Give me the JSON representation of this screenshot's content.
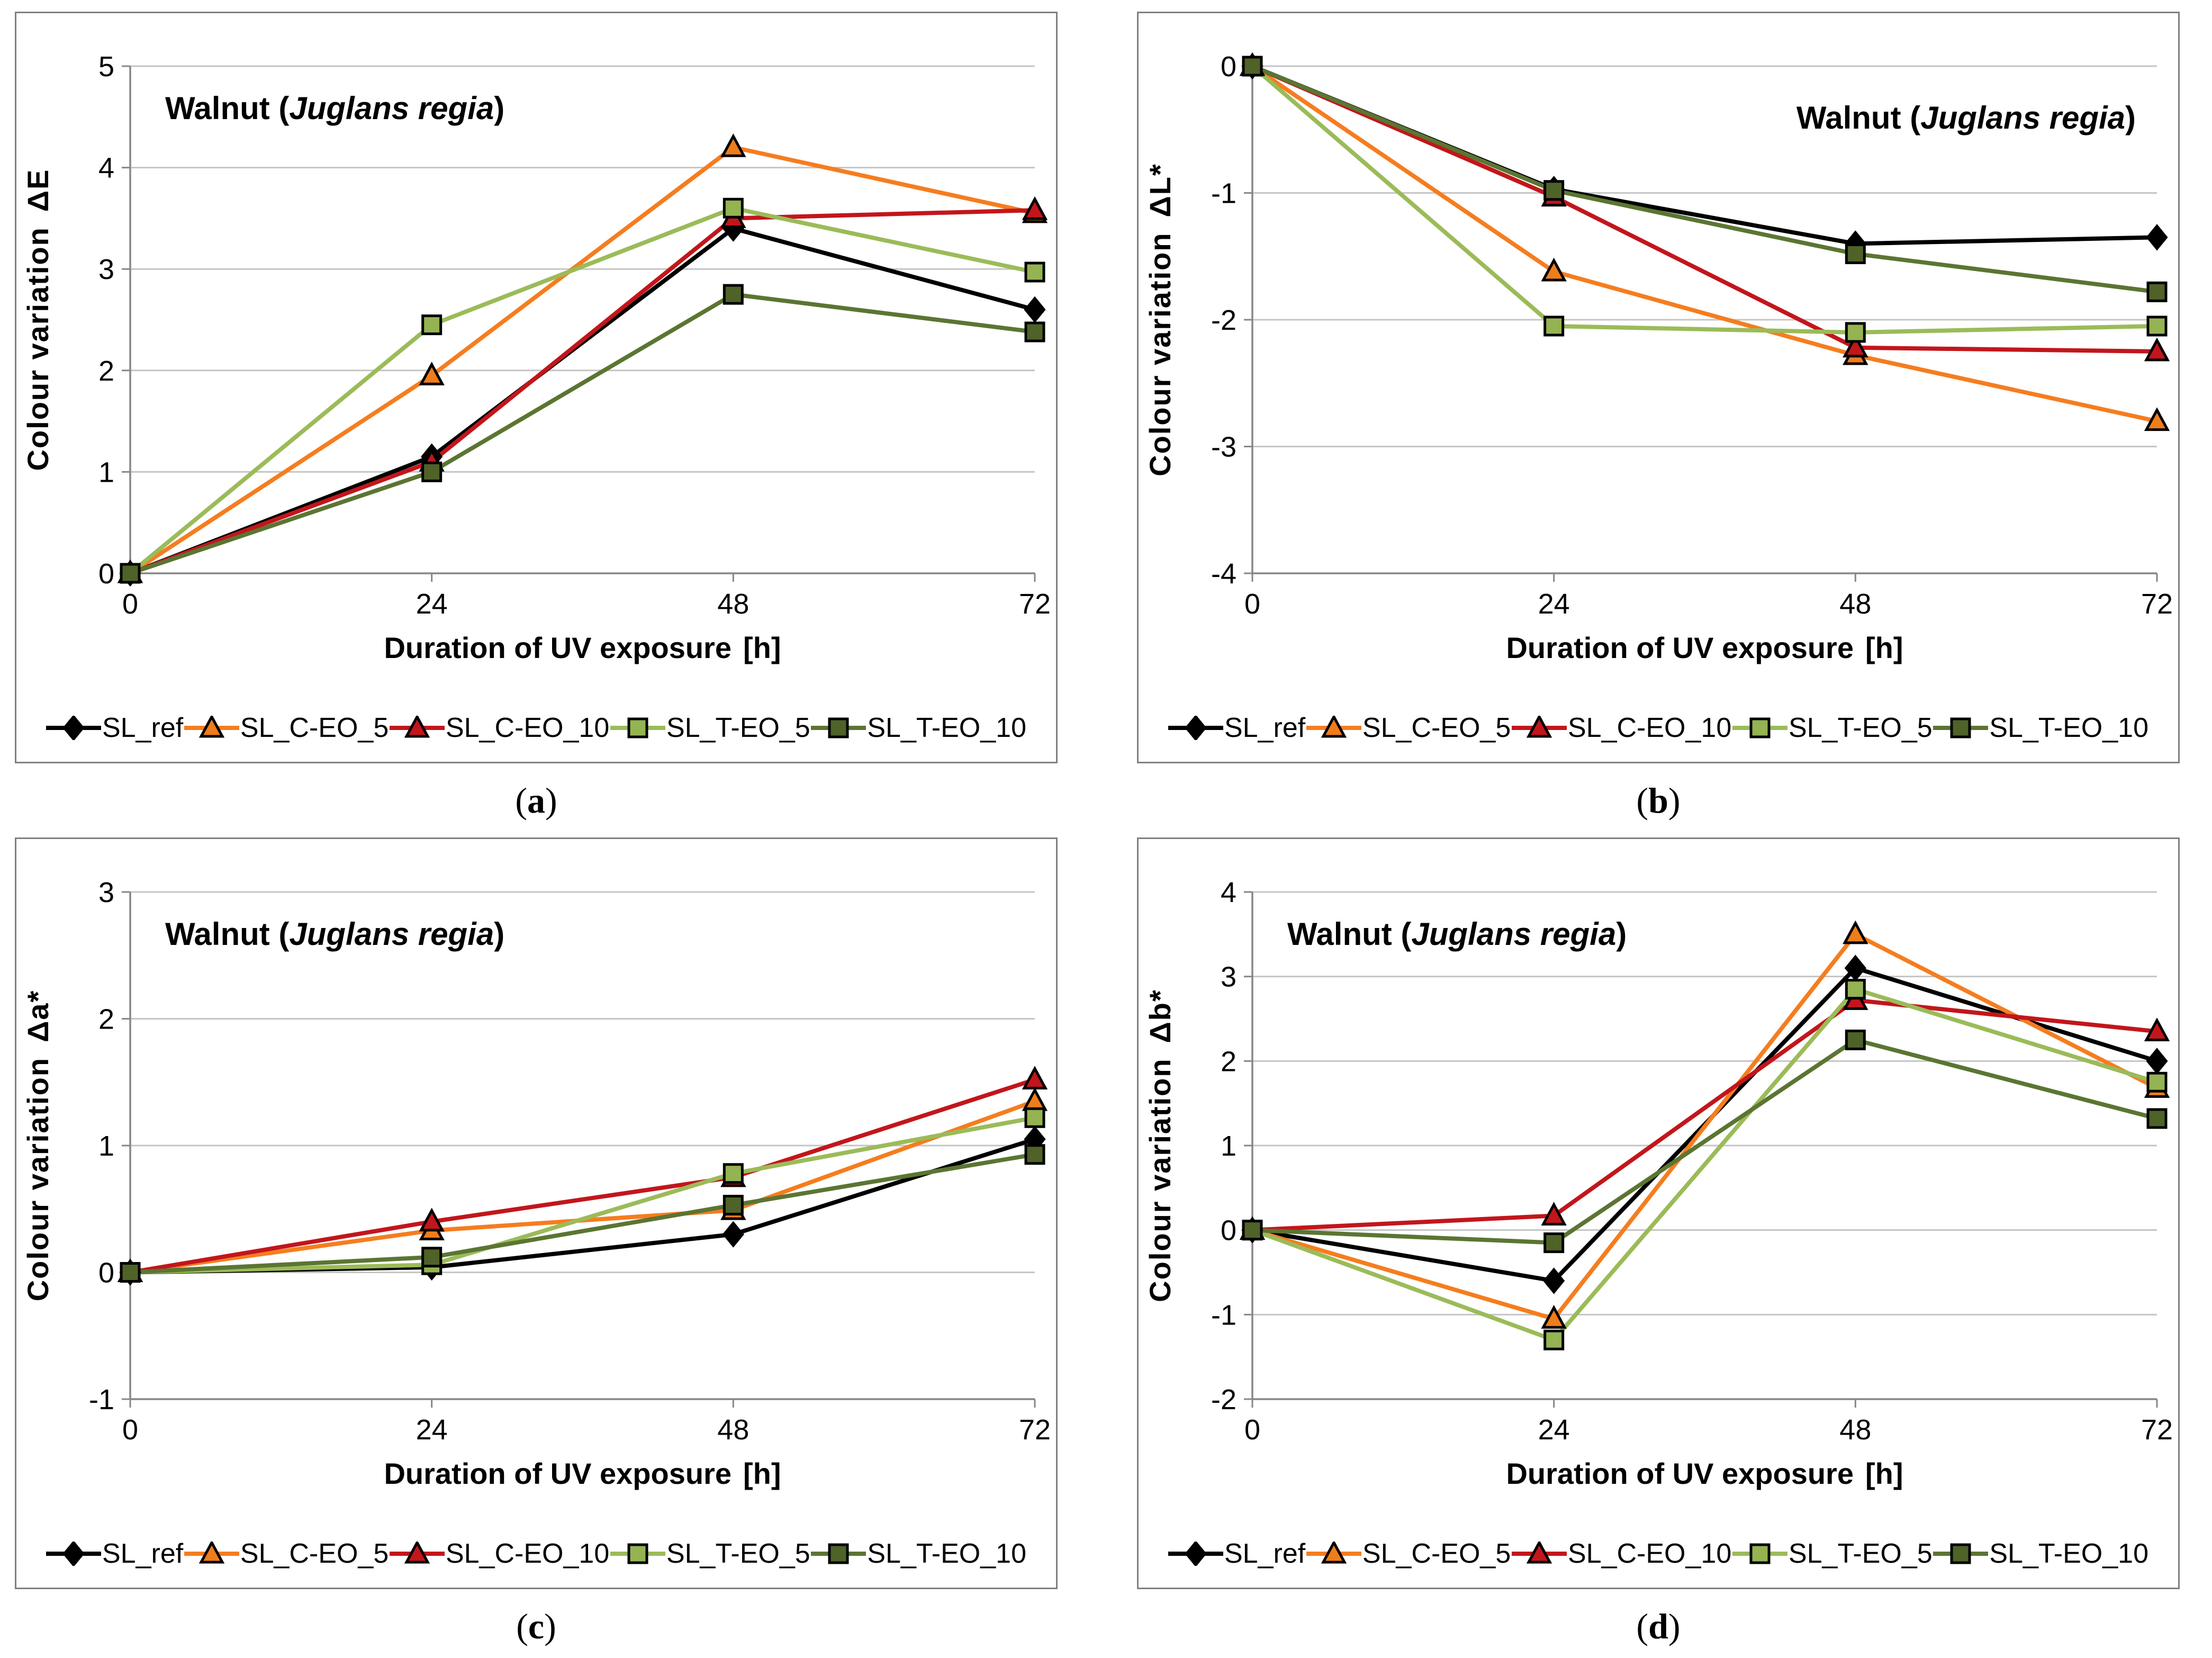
{
  "figure_title": "Walnut (Juglans regia) colour variation under UV exposure",
  "style": {
    "grid_color": "#C5C5C5",
    "axis_color": "#878787",
    "panel_border_color": "#808080",
    "text_color": "#000000",
    "background": "#FFFFFF"
  },
  "legend": {
    "items": [
      {
        "label": "SL_ref",
        "marker": "diamond",
        "line_color": "#000000",
        "fill": "#000000"
      },
      {
        "label": "SL_C-EO_5",
        "marker": "triangle",
        "line_color": "#F57D1F",
        "fill": "#EE7D1B"
      },
      {
        "label": "SL_C-EO_10",
        "marker": "triangle",
        "line_color": "#C2161B",
        "fill": "#C2161B"
      },
      {
        "label": "SL_T-EO_5",
        "marker": "square",
        "line_color": "#9BBB59",
        "fill": "#94B352"
      },
      {
        "label": "SL_T-EO_10",
        "marker": "square",
        "line_color": "#5B7532",
        "fill": "#4F6228"
      }
    ]
  },
  "chart_data": [
    {
      "type": "line",
      "panel": "a",
      "caption": {
        "open": "(",
        "letter": "a",
        "close": ")"
      },
      "title_prefix": "Walnut (",
      "title_italic": "Juglans regia",
      "title_suffix": ")",
      "title_align": "left",
      "ylabel": "Colour variation",
      "ysymbol": "ΔE",
      "xlabel": "Duration of UV exposure",
      "xunit": "[h]",
      "x": [
        0,
        24,
        48,
        72
      ],
      "ylim": [
        0,
        5
      ],
      "ytick_step": 1,
      "grid": true,
      "legend_position": "bottom",
      "series": [
        {
          "name": "SL_ref",
          "values": [
            0,
            1.15,
            3.4,
            2.6
          ]
        },
        {
          "name": "SL_C-EO_5",
          "values": [
            0,
            1.95,
            4.2,
            3.55
          ]
        },
        {
          "name": "SL_C-EO_10",
          "values": [
            0,
            1.1,
            3.5,
            3.58
          ]
        },
        {
          "name": "SL_T-EO_5",
          "values": [
            0,
            2.45,
            3.6,
            2.97
          ]
        },
        {
          "name": "SL_T-EO_10",
          "values": [
            0,
            1.0,
            2.75,
            2.38
          ]
        }
      ]
    },
    {
      "type": "line",
      "panel": "b",
      "caption": {
        "open": "(",
        "letter": "b",
        "close": ")"
      },
      "title_prefix": "Walnut (",
      "title_italic": "Juglans regia",
      "title_suffix": ")",
      "title_align": "right",
      "ylabel": "Colour variation",
      "ysymbol": "ΔL*",
      "xlabel": "Duration of UV exposure",
      "xunit": "[h]",
      "x": [
        0,
        24,
        48,
        72
      ],
      "ylim": [
        -4,
        0
      ],
      "ytick_step": 1,
      "grid": true,
      "legend_position": "bottom",
      "series": [
        {
          "name": "SL_ref",
          "values": [
            0,
            -0.97,
            -1.4,
            -1.35
          ]
        },
        {
          "name": "SL_C-EO_5",
          "values": [
            0,
            -1.62,
            -2.28,
            -2.8
          ]
        },
        {
          "name": "SL_C-EO_10",
          "values": [
            0,
            -1.03,
            -2.22,
            -2.25
          ]
        },
        {
          "name": "SL_T-EO_5",
          "values": [
            0,
            -2.05,
            -2.1,
            -2.05
          ]
        },
        {
          "name": "SL_T-EO_10",
          "values": [
            0,
            -0.98,
            -1.48,
            -1.78
          ]
        }
      ]
    },
    {
      "type": "line",
      "panel": "c",
      "caption": {
        "open": "(",
        "letter": "c",
        "close": ")"
      },
      "title_prefix": "Walnut (",
      "title_italic": "Juglans regia",
      "title_suffix": ")",
      "title_align": "left",
      "ylabel": "Colour variation",
      "ysymbol": "Δa*",
      "xlabel": "Duration of UV exposure",
      "xunit": "[h]",
      "x": [
        0,
        24,
        48,
        72
      ],
      "ylim": [
        -1,
        3
      ],
      "ytick_step": 1,
      "grid": true,
      "legend_position": "bottom",
      "series": [
        {
          "name": "SL_ref",
          "values": [
            0,
            0.04,
            0.3,
            1.05
          ]
        },
        {
          "name": "SL_C-EO_5",
          "values": [
            0,
            0.33,
            0.49,
            1.35
          ]
        },
        {
          "name": "SL_C-EO_10",
          "values": [
            0,
            0.4,
            0.75,
            1.52
          ]
        },
        {
          "name": "SL_T-EO_5",
          "values": [
            0,
            0.06,
            0.78,
            1.22
          ]
        },
        {
          "name": "SL_T-EO_10",
          "values": [
            0,
            0.12,
            0.53,
            0.93
          ]
        }
      ]
    },
    {
      "type": "line",
      "panel": "d",
      "caption": {
        "open": "(",
        "letter": "d",
        "close": ")"
      },
      "title_prefix": "Walnut (",
      "title_italic": "Juglans regia",
      "title_suffix": ")",
      "title_align": "left",
      "ylabel": "Colour variation",
      "ysymbol": "Δb*",
      "xlabel": "Duration of UV exposure",
      "xunit": "[h]",
      "x": [
        0,
        24,
        48,
        72
      ],
      "ylim": [
        -2,
        4
      ],
      "ytick_step": 1,
      "grid": true,
      "legend_position": "bottom",
      "series": [
        {
          "name": "SL_ref",
          "values": [
            0,
            -0.6,
            3.1,
            2.0
          ]
        },
        {
          "name": "SL_C-EO_5",
          "values": [
            0,
            -1.05,
            3.5,
            1.68
          ]
        },
        {
          "name": "SL_C-EO_10",
          "values": [
            0,
            0.17,
            2.72,
            2.35
          ]
        },
        {
          "name": "SL_T-EO_5",
          "values": [
            0,
            -1.3,
            2.85,
            1.75
          ]
        },
        {
          "name": "SL_T-EO_10",
          "values": [
            0,
            -0.15,
            2.25,
            1.32
          ]
        }
      ]
    }
  ]
}
